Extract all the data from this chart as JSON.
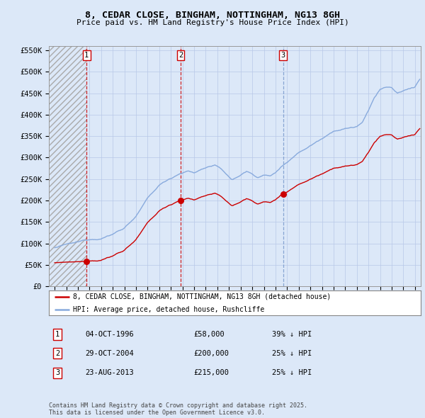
{
  "title_line1": "8, CEDAR CLOSE, BINGHAM, NOTTINGHAM, NG13 8GH",
  "title_line2": "Price paid vs. HM Land Registry's House Price Index (HPI)",
  "property_label": "8, CEDAR CLOSE, BINGHAM, NOTTINGHAM, NG13 8GH (detached house)",
  "hpi_label": "HPI: Average price, detached house, Rushcliffe",
  "sales": [
    {
      "num": 1,
      "date_num": 1996.75,
      "price": 58000,
      "label": "04-OCT-1996",
      "pct": "39% ↓ HPI",
      "vline_color": "#cc0000"
    },
    {
      "num": 2,
      "date_num": 2004.83,
      "price": 200000,
      "label": "29-OCT-2004",
      "pct": "25% ↓ HPI",
      "vline_color": "#cc0000"
    },
    {
      "num": 3,
      "date_num": 2013.65,
      "price": 215000,
      "label": "23-AUG-2013",
      "pct": "25% ↓ HPI",
      "vline_color": "#7799cc"
    }
  ],
  "xlim": [
    1993.5,
    2025.5
  ],
  "ylim": [
    0,
    560000
  ],
  "yticks": [
    0,
    50000,
    100000,
    150000,
    200000,
    250000,
    300000,
    350000,
    400000,
    450000,
    500000,
    550000
  ],
  "ytick_labels": [
    "£0",
    "£50K",
    "£100K",
    "£150K",
    "£200K",
    "£250K",
    "£300K",
    "£350K",
    "£400K",
    "£450K",
    "£500K",
    "£550K"
  ],
  "property_color": "#cc0000",
  "hpi_color": "#88aadd",
  "background_color": "#dce8f8",
  "plot_bg_color": "#dce8f8",
  "copyright_text": "Contains HM Land Registry data © Crown copyright and database right 2025.\nThis data is licensed under the Open Government Licence v3.0."
}
